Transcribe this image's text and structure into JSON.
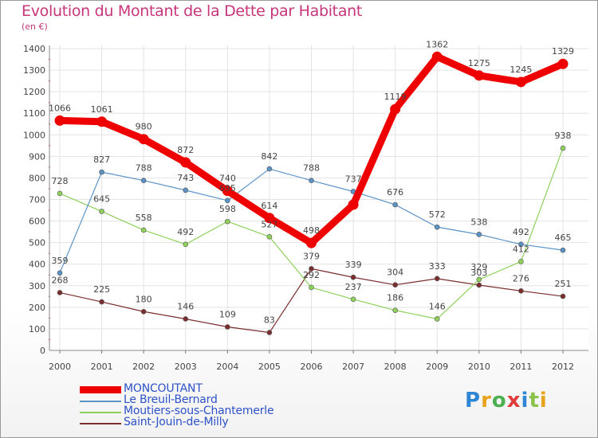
{
  "title": "Evolution du Montant de la Dette par Habitant",
  "subtitle": "(en €)",
  "logo": {
    "text": "Proxiti",
    "colors": [
      "#2e86d4",
      "#e8a21b",
      "#4caf50",
      "#e03c3c",
      "#2e86d4",
      "#8bc34a",
      "#e8a21b"
    ]
  },
  "chart_data": {
    "type": "line",
    "title": "Evolution du Montant de la Dette par Habitant",
    "ylabel": "(en €)",
    "xlabel": "",
    "x": [
      "2000",
      "2001",
      "2002",
      "2003",
      "2004",
      "2005",
      "2006",
      "2007",
      "2008",
      "2009",
      "2010",
      "2011",
      "2012"
    ],
    "ylim": [
      0,
      1400
    ],
    "yticks": [
      0,
      100,
      200,
      300,
      400,
      500,
      600,
      700,
      800,
      900,
      1000,
      1100,
      1200,
      1300,
      1400
    ],
    "grid": true,
    "legend_position": "bottom-left",
    "series": [
      {
        "name": "MONCOUTANT",
        "color": "#ee0000",
        "values": [
          1066,
          1061,
          980,
          872,
          740,
          614,
          498,
          676,
          1119,
          1362,
          1275,
          1245,
          1329
        ],
        "labels": [
          "1066",
          "1061",
          "980",
          "872",
          "740",
          "614",
          "498",
          "",
          "1119",
          "1362",
          "1275",
          "1245",
          "1329"
        ],
        "label_offsets": [
          -12,
          -12,
          -12,
          -12,
          -12,
          -12,
          -12,
          -12,
          -12,
          -12,
          -12,
          -12,
          -12
        ],
        "width": 9
      },
      {
        "name": "Le Breuil-Bernard",
        "color": "#5b93c7",
        "values": [
          359,
          827,
          788,
          743,
          695,
          842,
          788,
          737,
          676,
          572,
          538,
          492,
          465
        ],
        "labels": [
          "359",
          "827",
          "788",
          "743",
          "695",
          "842",
          "788",
          "737",
          "676",
          "572",
          "538",
          "492",
          "465"
        ],
        "label_offsets": [
          -12,
          -12,
          -12,
          -12,
          -12,
          -12,
          -12,
          -12,
          -12,
          -12,
          -12,
          -12,
          -12
        ],
        "width": 1.2
      },
      {
        "name": "Moutiers-sous-Chantemerle",
        "color": "#8ed15a",
        "values": [
          728,
          645,
          558,
          492,
          598,
          527,
          292,
          237,
          186,
          146,
          329,
          412,
          938
        ],
        "labels": [
          "728",
          "645",
          "558",
          "492",
          "598",
          "527",
          "292",
          "237",
          "186",
          "146",
          "329",
          "412",
          "938"
        ],
        "label_offsets": [
          -12,
          -12,
          -12,
          -12,
          -12,
          -12,
          -12,
          -12,
          -12,
          -12,
          -12,
          -12,
          -12
        ],
        "width": 1.2
      },
      {
        "name": "Saint-Jouin-de-Milly",
        "color": "#7b2e2e",
        "values": [
          268,
          225,
          180,
          146,
          109,
          83,
          379,
          339,
          304,
          333,
          303,
          276,
          251
        ],
        "labels": [
          "268",
          "225",
          "180",
          "146",
          "109",
          "83",
          "379",
          "339",
          "304",
          "333",
          "303",
          "276",
          "251"
        ],
        "label_offsets": [
          -12,
          -12,
          -12,
          -12,
          -12,
          -12,
          -12,
          -12,
          -12,
          -12,
          -12,
          -12,
          -12
        ],
        "width": 1.2
      }
    ]
  }
}
